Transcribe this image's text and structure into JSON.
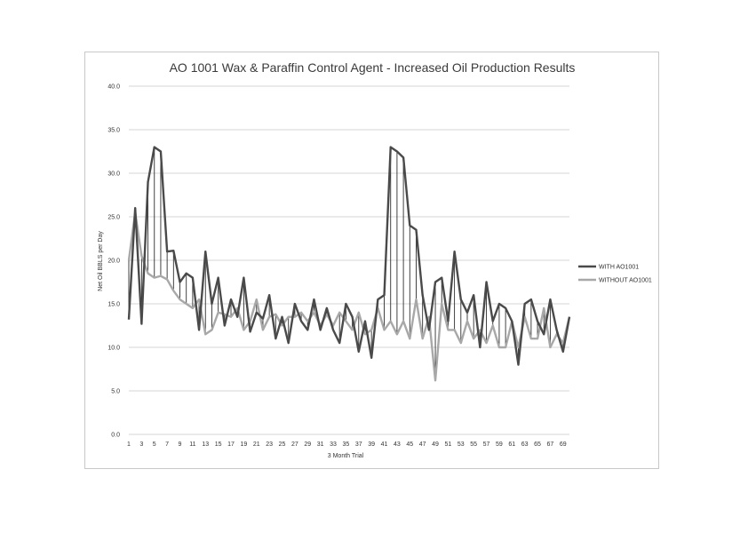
{
  "chart_data": {
    "type": "line",
    "title": "AO 1001 Wax & Paraffin Control Agent - Increased Oil Production Results",
    "xlabel": "3 Month Trial",
    "ylabel": "Net Oil BBLS per Day",
    "ylim": [
      0,
      40
    ],
    "yticks": [
      "0.0",
      "5.0",
      "10.0",
      "15.0",
      "20.0",
      "25.0",
      "30.0",
      "35.0",
      "40.0"
    ],
    "x": [
      1,
      2,
      3,
      4,
      5,
      6,
      7,
      8,
      9,
      10,
      11,
      12,
      13,
      14,
      15,
      16,
      17,
      18,
      19,
      20,
      21,
      22,
      23,
      24,
      25,
      26,
      27,
      28,
      29,
      30,
      31,
      32,
      33,
      34,
      35,
      36,
      37,
      38,
      39,
      40,
      41,
      42,
      43,
      44,
      45,
      46,
      47,
      48,
      49,
      50,
      51,
      52,
      53,
      54,
      55,
      56,
      57,
      58,
      59,
      60,
      61,
      62,
      63,
      64,
      65,
      66,
      67,
      68,
      69,
      70
    ],
    "xtick_labels": [
      "1",
      "3",
      "5",
      "7",
      "9",
      "11",
      "13",
      "15",
      "17",
      "19",
      "21",
      "23",
      "25",
      "27",
      "29",
      "31",
      "33",
      "35",
      "37",
      "39",
      "41",
      "43",
      "45",
      "47",
      "49",
      "51",
      "53",
      "55",
      "57",
      "59",
      "61",
      "63",
      "65",
      "67",
      "69"
    ],
    "grid": true,
    "legend_position": "right",
    "series": [
      {
        "name": "WITH AO1001",
        "color": "#4a4a4a",
        "values": [
          13.2,
          26.0,
          12.7,
          29.0,
          33.0,
          32.5,
          21.0,
          21.1,
          17.5,
          18.5,
          18.0,
          12.0,
          21.0,
          15.0,
          18.0,
          12.5,
          15.5,
          13.5,
          18.0,
          11.8,
          14.0,
          13.3,
          16.0,
          11.0,
          13.5,
          10.5,
          15.0,
          13.0,
          12.0,
          15.5,
          12.0,
          14.5,
          12.0,
          10.5,
          15.0,
          13.5,
          9.5,
          13.0,
          8.8,
          15.5,
          16.0,
          33.0,
          32.5,
          31.8,
          24.0,
          23.5,
          16.0,
          12.0,
          17.5,
          18.0,
          13.0,
          21.0,
          15.5,
          14.0,
          16.0,
          10.0,
          17.5,
          13.0,
          15.0,
          14.5,
          13.0,
          8.0,
          15.0,
          15.5,
          13.0,
          11.5,
          15.5,
          12.0,
          9.5,
          13.5
        ]
      },
      {
        "name": "WITHOUT AO1001",
        "color": "#a8a8a8",
        "values": [
          20.0,
          25.5,
          20.5,
          18.5,
          18.0,
          18.2,
          17.8,
          16.5,
          15.5,
          15.0,
          14.5,
          15.5,
          11.5,
          12.0,
          14.0,
          13.8,
          13.5,
          14.5,
          12.0,
          13.0,
          15.5,
          12.0,
          13.5,
          13.8,
          12.5,
          13.5,
          13.5,
          14.0,
          13.0,
          14.0,
          12.5,
          13.8,
          12.5,
          14.0,
          13.0,
          12.0,
          14.0,
          11.5,
          12.0,
          14.5,
          12.0,
          13.0,
          11.5,
          13.0,
          11.0,
          15.5,
          11.0,
          13.5,
          6.2,
          15.0,
          12.0,
          12.0,
          10.5,
          13.0,
          11.0,
          12.0,
          10.5,
          12.5,
          10.0,
          10.0,
          13.0,
          10.0,
          13.5,
          11.0,
          11.0,
          14.5,
          10.0,
          11.5,
          10.5,
          13.5
        ]
      }
    ]
  }
}
